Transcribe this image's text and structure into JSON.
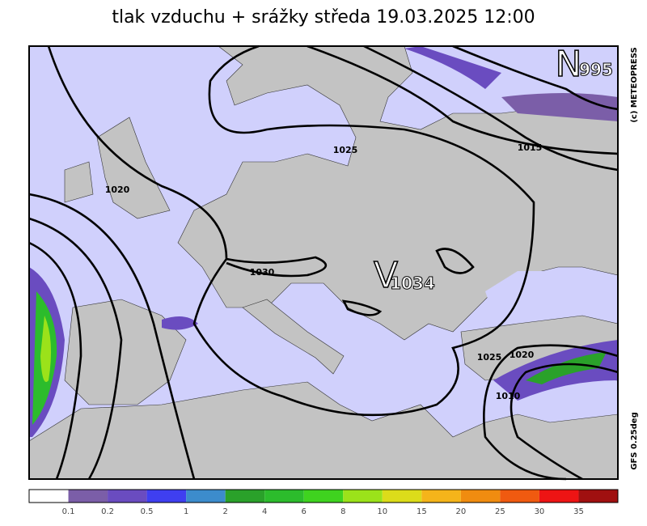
{
  "title": "tlak vzduchu + srážky  středa 19.03.2025 12:00",
  "centers": [
    {
      "letter": "V",
      "value": "1034"
    },
    {
      "letter": "N",
      "value": "995"
    }
  ],
  "isobar_labels": [
    "1025",
    "1015",
    "1020",
    "1030",
    "1025",
    "1020",
    "1010"
  ],
  "credits": [
    "(c) METEOPRESS",
    "GFS 0.25deg"
  ],
  "legend": {
    "labels": [
      "0.1",
      "0.2",
      "0.5",
      "1",
      "2",
      "4",
      "6",
      "8",
      "10",
      "15",
      "20",
      "25",
      "30",
      "35"
    ],
    "colors": [
      "#ffffff",
      "#7b5ea8",
      "#6a4cc0",
      "#3f3ff0",
      "#3c8ccc",
      "#2aa12a",
      "#2cbc2c",
      "#3fd31f",
      "#9be21a",
      "#dcdc1a",
      "#f5b41a",
      "#f08c10",
      "#f05a10",
      "#ee1414",
      "#a01010"
    ]
  }
}
